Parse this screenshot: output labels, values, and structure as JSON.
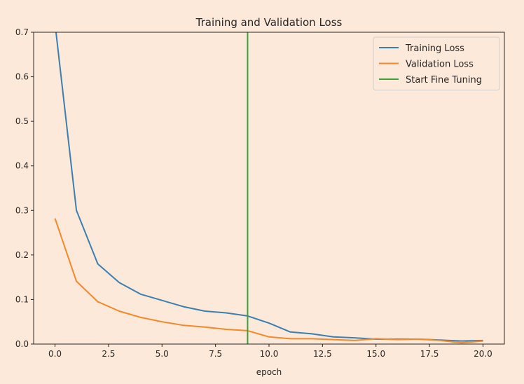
{
  "chart_data": {
    "type": "line",
    "title": "Training and Validation Loss",
    "xlabel": "epoch",
    "ylabel": "",
    "xlim": [
      -1,
      21
    ],
    "ylim": [
      0.0,
      0.7
    ],
    "xticks": [
      "0.0",
      "2.5",
      "5.0",
      "7.5",
      "10.0",
      "12.5",
      "15.0",
      "17.5",
      "20.0"
    ],
    "yticks": [
      "0.0",
      "0.1",
      "0.2",
      "0.3",
      "0.4",
      "0.5",
      "0.6",
      "0.7"
    ],
    "grid": false,
    "legend_position": "top-right",
    "x": [
      0,
      1,
      2,
      3,
      4,
      5,
      6,
      7,
      8,
      9,
      10,
      11,
      12,
      13,
      14,
      15,
      16,
      17,
      18,
      19,
      20
    ],
    "series": [
      {
        "name": "Training Loss",
        "color": "#3b7fb0",
        "values": [
          0.72,
          0.3,
          0.18,
          0.138,
          0.112,
          0.098,
          0.084,
          0.074,
          0.07,
          0.063,
          0.047,
          0.027,
          0.023,
          0.016,
          0.014,
          0.011,
          0.011,
          0.011,
          0.009,
          0.007,
          0.008
        ]
      },
      {
        "name": "Validation Loss",
        "color": "#f5882a",
        "values": [
          0.282,
          0.141,
          0.095,
          0.074,
          0.06,
          0.05,
          0.042,
          0.038,
          0.033,
          0.03,
          0.016,
          0.012,
          0.012,
          0.01,
          0.008,
          0.012,
          0.01,
          0.011,
          0.008,
          0.003,
          0.007
        ]
      }
    ],
    "vlines": [
      {
        "name": "Start Fine Tuning",
        "x": 9,
        "color": "#3f9e3f"
      }
    ]
  }
}
